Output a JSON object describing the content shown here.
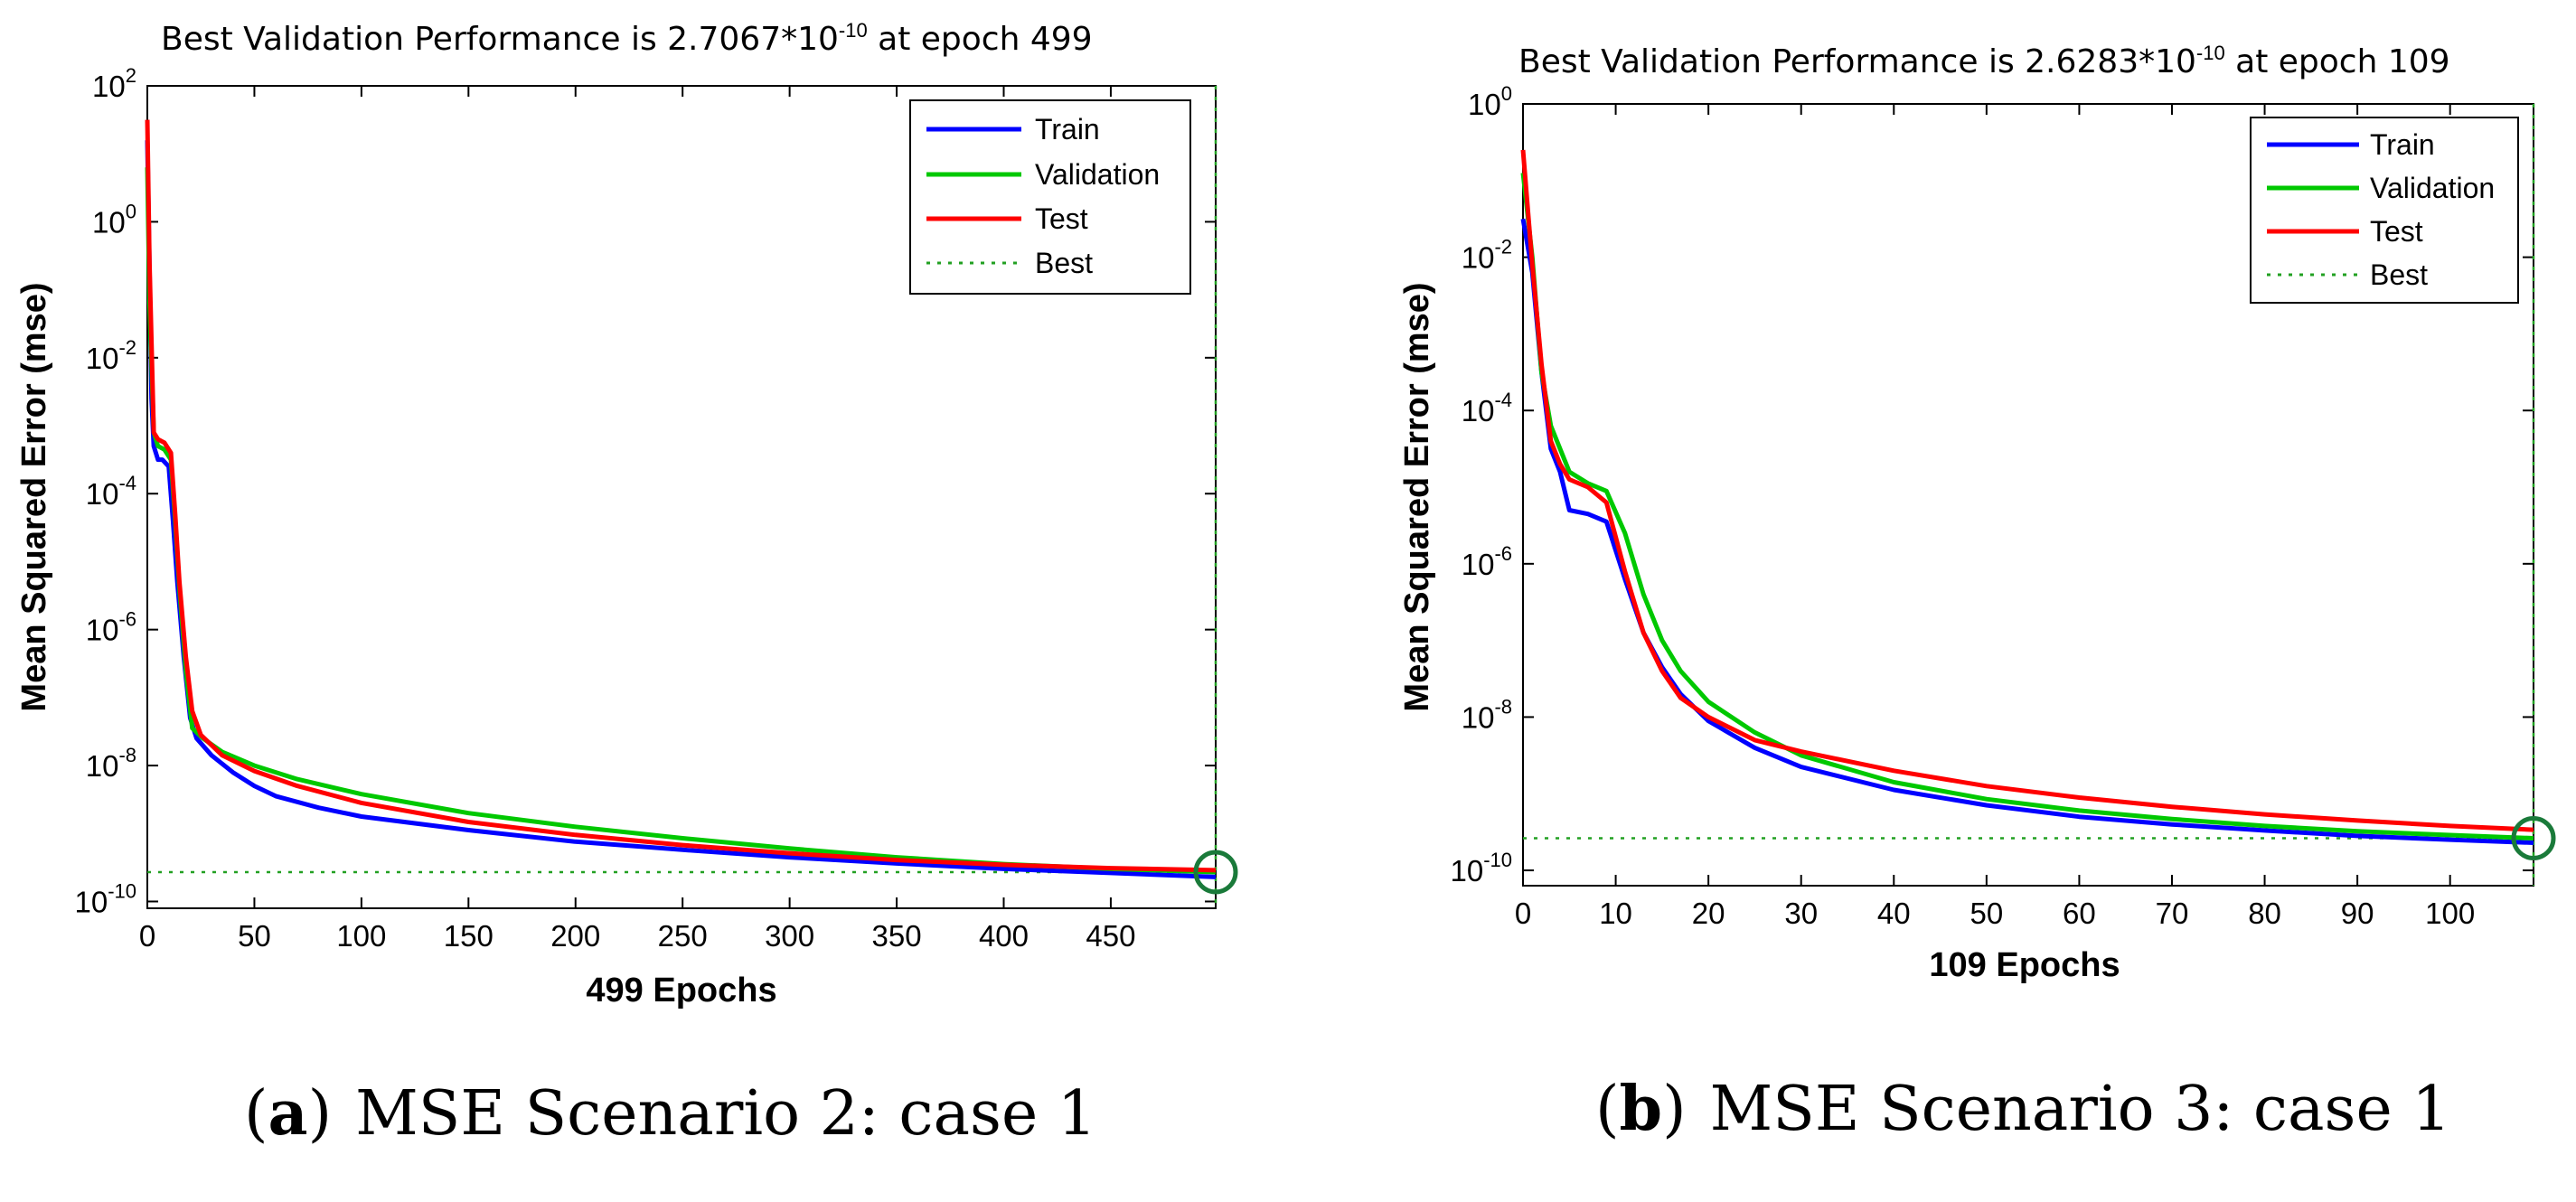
{
  "colors": {
    "train": "#0000ff",
    "validation": "#00c800",
    "test": "#ff0000",
    "best": "#22a022",
    "best_marker": "#1a7a3a"
  },
  "chart_data": [
    {
      "type": "line",
      "panel": "a",
      "title_prefix": "Best Validation Performance is 2.7067*10",
      "title_exponent": "-10",
      "title_suffix": " at epoch 499",
      "xlabel": "499 Epochs",
      "ylabel": "Mean Squared Error  (mse)",
      "xlim": [
        0,
        499
      ],
      "ylim_log10": [
        -10.1,
        2
      ],
      "x_ticks": [
        0,
        50,
        100,
        150,
        200,
        250,
        300,
        350,
        400,
        450
      ],
      "y_ticks": [
        {
          "base": "10",
          "exp": "2",
          "log": 2
        },
        {
          "base": "10",
          "exp": "0",
          "log": 0
        },
        {
          "base": "10",
          "exp": "-2",
          "log": -2
        },
        {
          "base": "10",
          "exp": "-4",
          "log": -4
        },
        {
          "base": "10",
          "exp": "-6",
          "log": -6
        },
        {
          "base": "10",
          "exp": "-8",
          "log": -8
        },
        {
          "base": "10",
          "exp": "-10",
          "log": -10
        }
      ],
      "legend": [
        "Train",
        "Validation",
        "Test",
        "Best"
      ],
      "legend_position": "top-right",
      "best_epoch": 499,
      "best_value_log10": -9.5676,
      "series": [
        {
          "name": "Train",
          "key": "train",
          "points": [
            [
              0,
              1.2
            ],
            [
              1,
              -0.7
            ],
            [
              2,
              -2.6
            ],
            [
              3,
              -3.3
            ],
            [
              5,
              -3.5
            ],
            [
              7,
              -3.5
            ],
            [
              10,
              -3.6
            ],
            [
              12,
              -4.4
            ],
            [
              14,
              -5.3
            ],
            [
              17,
              -6.4
            ],
            [
              20,
              -7.3
            ],
            [
              23,
              -7.6
            ],
            [
              30,
              -7.85
            ],
            [
              40,
              -8.1
            ],
            [
              50,
              -8.3
            ],
            [
              60,
              -8.45
            ],
            [
              80,
              -8.62
            ],
            [
              100,
              -8.75
            ],
            [
              150,
              -8.95
            ],
            [
              200,
              -9.12
            ],
            [
              250,
              -9.24
            ],
            [
              300,
              -9.35
            ],
            [
              350,
              -9.44
            ],
            [
              400,
              -9.52
            ],
            [
              450,
              -9.58
            ],
            [
              499,
              -9.64
            ]
          ]
        },
        {
          "name": "Validation",
          "key": "validation",
          "points": [
            [
              0,
              0.8
            ],
            [
              1,
              -1.2
            ],
            [
              3,
              -3.1
            ],
            [
              5,
              -3.3
            ],
            [
              8,
              -3.35
            ],
            [
              11,
              -3.5
            ],
            [
              13,
              -4.4
            ],
            [
              15,
              -5.4
            ],
            [
              18,
              -6.6
            ],
            [
              21,
              -7.45
            ],
            [
              26,
              -7.6
            ],
            [
              35,
              -7.8
            ],
            [
              50,
              -8.0
            ],
            [
              70,
              -8.2
            ],
            [
              100,
              -8.42
            ],
            [
              150,
              -8.7
            ],
            [
              200,
              -8.9
            ],
            [
              250,
              -9.07
            ],
            [
              300,
              -9.22
            ],
            [
              350,
              -9.35
            ],
            [
              400,
              -9.45
            ],
            [
              450,
              -9.52
            ],
            [
              499,
              -9.5676
            ]
          ]
        },
        {
          "name": "Test",
          "key": "test",
          "points": [
            [
              0,
              1.5
            ],
            [
              1,
              -0.6
            ],
            [
              3,
              -3.1
            ],
            [
              5,
              -3.2
            ],
            [
              8,
              -3.25
            ],
            [
              11,
              -3.4
            ],
            [
              13,
              -4.3
            ],
            [
              15,
              -5.3
            ],
            [
              18,
              -6.4
            ],
            [
              21,
              -7.2
            ],
            [
              25,
              -7.55
            ],
            [
              35,
              -7.85
            ],
            [
              50,
              -8.08
            ],
            [
              70,
              -8.3
            ],
            [
              100,
              -8.55
            ],
            [
              150,
              -8.83
            ],
            [
              200,
              -9.02
            ],
            [
              250,
              -9.17
            ],
            [
              300,
              -9.29
            ],
            [
              350,
              -9.39
            ],
            [
              400,
              -9.46
            ],
            [
              450,
              -9.51
            ],
            [
              499,
              -9.54
            ]
          ]
        }
      ]
    },
    {
      "type": "line",
      "panel": "b",
      "title_prefix": "Best Validation Performance is 2.6283*10",
      "title_exponent": "-10",
      "title_suffix": " at epoch 109",
      "xlabel": "109 Epochs",
      "ylabel": "Mean Squared Error  (mse)",
      "xlim": [
        0,
        109
      ],
      "ylim_log10": [
        -10.2,
        0
      ],
      "x_ticks": [
        0,
        10,
        20,
        30,
        40,
        50,
        60,
        70,
        80,
        90,
        100
      ],
      "y_ticks": [
        {
          "base": "10",
          "exp": "0",
          "log": 0
        },
        {
          "base": "10",
          "exp": "-2",
          "log": -2
        },
        {
          "base": "10",
          "exp": "-4",
          "log": -4
        },
        {
          "base": "10",
          "exp": "-6",
          "log": -6
        },
        {
          "base": "10",
          "exp": "-8",
          "log": -8
        },
        {
          "base": "10",
          "exp": "-10",
          "log": -10
        }
      ],
      "legend": [
        "Train",
        "Validation",
        "Test",
        "Best"
      ],
      "legend_position": "top-right",
      "best_epoch": 109,
      "best_value_log10": -9.5804,
      "series": [
        {
          "name": "Train",
          "key": "train",
          "points": [
            [
              0,
              -1.5
            ],
            [
              1,
              -2.2
            ],
            [
              2,
              -3.5
            ],
            [
              3,
              -4.5
            ],
            [
              4,
              -4.8
            ],
            [
              5,
              -5.3
            ],
            [
              7,
              -5.35
            ],
            [
              9,
              -5.45
            ],
            [
              11,
              -6.2
            ],
            [
              13,
              -6.9
            ],
            [
              15,
              -7.35
            ],
            [
              17,
              -7.7
            ],
            [
              20,
              -8.05
            ],
            [
              25,
              -8.4
            ],
            [
              30,
              -8.65
            ],
            [
              40,
              -8.95
            ],
            [
              50,
              -9.15
            ],
            [
              60,
              -9.3
            ],
            [
              70,
              -9.4
            ],
            [
              80,
              -9.48
            ],
            [
              90,
              -9.55
            ],
            [
              100,
              -9.6
            ],
            [
              109,
              -9.64
            ]
          ]
        },
        {
          "name": "Validation",
          "key": "validation",
          "points": [
            [
              0,
              -0.9
            ],
            [
              1,
              -2.0
            ],
            [
              2,
              -3.5
            ],
            [
              3,
              -4.2
            ],
            [
              4,
              -4.5
            ],
            [
              5,
              -4.8
            ],
            [
              7,
              -4.95
            ],
            [
              9,
              -5.05
            ],
            [
              11,
              -5.6
            ],
            [
              13,
              -6.4
            ],
            [
              15,
              -7.0
            ],
            [
              17,
              -7.4
            ],
            [
              20,
              -7.8
            ],
            [
              25,
              -8.2
            ],
            [
              30,
              -8.5
            ],
            [
              40,
              -8.85
            ],
            [
              50,
              -9.07
            ],
            [
              60,
              -9.22
            ],
            [
              70,
              -9.33
            ],
            [
              80,
              -9.42
            ],
            [
              90,
              -9.49
            ],
            [
              100,
              -9.54
            ],
            [
              109,
              -9.5804
            ]
          ]
        },
        {
          "name": "Test",
          "key": "test",
          "points": [
            [
              0,
              -0.6
            ],
            [
              1,
              -2.1
            ],
            [
              2,
              -3.4
            ],
            [
              3,
              -4.4
            ],
            [
              4,
              -4.7
            ],
            [
              5,
              -4.9
            ],
            [
              7,
              -5.0
            ],
            [
              9,
              -5.2
            ],
            [
              11,
              -6.1
            ],
            [
              13,
              -6.9
            ],
            [
              15,
              -7.4
            ],
            [
              17,
              -7.75
            ],
            [
              20,
              -8.0
            ],
            [
              25,
              -8.3
            ],
            [
              30,
              -8.45
            ],
            [
              40,
              -8.7
            ],
            [
              50,
              -8.9
            ],
            [
              60,
              -9.05
            ],
            [
              70,
              -9.17
            ],
            [
              80,
              -9.27
            ],
            [
              90,
              -9.35
            ],
            [
              100,
              -9.42
            ],
            [
              109,
              -9.47
            ]
          ]
        }
      ]
    }
  ],
  "captions": [
    {
      "letter": "a",
      "text": "MSE Scenario 2: case 1"
    },
    {
      "letter": "b",
      "text": "MSE Scenario 3: case 1"
    }
  ]
}
